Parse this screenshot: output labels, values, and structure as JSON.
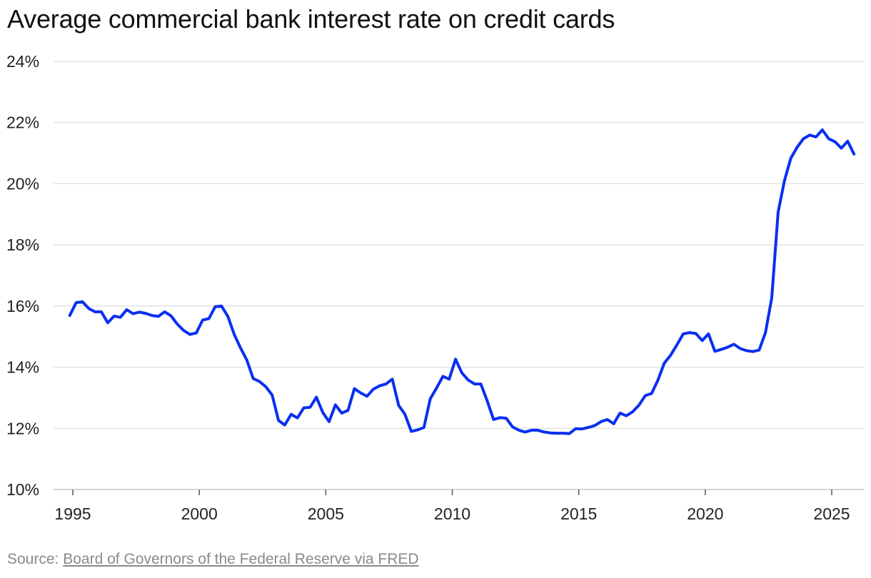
{
  "chart_data": {
    "type": "line",
    "title": "Average commercial bank interest rate on credit cards",
    "xlabel": "",
    "ylabel": "",
    "xlim": [
      1994.5,
      2026.2
    ],
    "ylim": [
      10,
      24
    ],
    "y_ticks": [
      10,
      12,
      14,
      16,
      18,
      20,
      22,
      24
    ],
    "y_tick_labels": [
      "10%",
      "12%",
      "14%",
      "16%",
      "18%",
      "20%",
      "22%",
      "24%"
    ],
    "x_ticks": [
      1995,
      2000,
      2005,
      2010,
      2015,
      2020,
      2025
    ],
    "x_tick_labels": [
      "1995",
      "2000",
      "2005",
      "2010",
      "2015",
      "2020",
      "2025"
    ],
    "grid": true,
    "series": [
      {
        "name": "Credit card interest rate",
        "color": "#0a2ff0",
        "x": [
          1994.88,
          1995.13,
          1995.38,
          1995.63,
          1995.88,
          1996.13,
          1996.38,
          1996.63,
          1996.88,
          1997.13,
          1997.38,
          1997.63,
          1997.88,
          1998.13,
          1998.38,
          1998.63,
          1998.88,
          1999.13,
          1999.38,
          1999.63,
          1999.88,
          2000.13,
          2000.38,
          2000.63,
          2000.88,
          2001.13,
          2001.38,
          2001.63,
          2001.88,
          2002.13,
          2002.38,
          2002.63,
          2002.88,
          2003.13,
          2003.38,
          2003.63,
          2003.88,
          2004.13,
          2004.38,
          2004.63,
          2004.88,
          2005.13,
          2005.38,
          2005.63,
          2005.88,
          2006.13,
          2006.38,
          2006.63,
          2006.88,
          2007.13,
          2007.38,
          2007.63,
          2007.88,
          2008.13,
          2008.38,
          2008.63,
          2008.88,
          2009.13,
          2009.38,
          2009.63,
          2009.88,
          2010.13,
          2010.38,
          2010.63,
          2010.88,
          2011.13,
          2011.38,
          2011.63,
          2011.88,
          2012.13,
          2012.38,
          2012.63,
          2012.88,
          2013.13,
          2013.38,
          2013.63,
          2013.88,
          2014.13,
          2014.38,
          2014.63,
          2014.88,
          2015.13,
          2015.38,
          2015.63,
          2015.88,
          2016.13,
          2016.38,
          2016.63,
          2016.88,
          2017.13,
          2017.38,
          2017.63,
          2017.88,
          2018.13,
          2018.38,
          2018.63,
          2018.88,
          2019.13,
          2019.38,
          2019.63,
          2019.88,
          2020.13,
          2020.38,
          2020.63,
          2020.88,
          2021.13,
          2021.38,
          2021.63,
          2021.88,
          2022.13,
          2022.38,
          2022.63,
          2022.88,
          2023.13,
          2023.38,
          2023.63,
          2023.88,
          2024.13,
          2024.38,
          2024.63,
          2024.88,
          2025.13,
          2025.38,
          2025.63,
          2025.88
        ],
        "values": [
          15.69,
          16.11,
          16.14,
          15.92,
          15.81,
          15.81,
          15.45,
          15.67,
          15.63,
          15.88,
          15.75,
          15.8,
          15.76,
          15.69,
          15.66,
          15.81,
          15.68,
          15.41,
          15.2,
          15.07,
          15.12,
          15.54,
          15.59,
          15.98,
          16.0,
          15.66,
          15.07,
          14.63,
          14.23,
          13.63,
          13.53,
          13.36,
          13.09,
          12.26,
          12.11,
          12.46,
          12.34,
          12.67,
          12.69,
          13.02,
          12.52,
          12.22,
          12.77,
          12.5,
          12.59,
          13.3,
          13.16,
          13.05,
          13.28,
          13.39,
          13.45,
          13.61,
          12.75,
          12.46,
          11.9,
          11.95,
          12.03,
          12.97,
          13.32,
          13.7,
          13.61,
          14.26,
          13.81,
          13.58,
          13.45,
          13.45,
          12.9,
          12.29,
          12.35,
          12.33,
          12.05,
          11.94,
          11.88,
          11.94,
          11.94,
          11.88,
          11.85,
          11.84,
          11.84,
          11.83,
          11.99,
          11.98,
          12.03,
          12.09,
          12.22,
          12.29,
          12.15,
          12.5,
          12.41,
          12.54,
          12.76,
          13.07,
          13.14,
          13.58,
          14.13,
          14.39,
          14.73,
          15.09,
          15.13,
          15.1,
          14.87,
          15.09,
          14.52,
          14.58,
          14.65,
          14.75,
          14.61,
          14.54,
          14.51,
          14.56,
          15.13,
          16.27,
          19.07,
          20.09,
          20.83,
          21.19,
          21.47,
          21.59,
          21.53,
          21.76,
          21.47,
          21.37,
          21.16,
          21.39,
          20.97
        ]
      }
    ]
  },
  "source": {
    "prefix": "Source: ",
    "link_text": "Board of Governors of the Federal Reserve via FRED"
  }
}
